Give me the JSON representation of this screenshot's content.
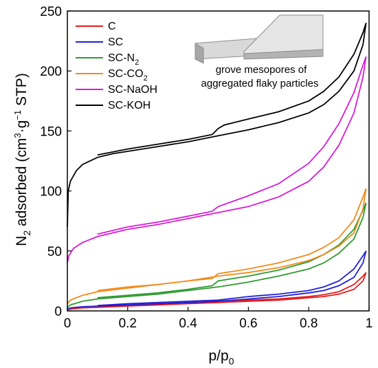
{
  "chart_data": {
    "type": "line",
    "title": "",
    "xlabel": {
      "base": "p/p",
      "sub": "0"
    },
    "ylabel": {
      "base": "N",
      "sub": "2",
      "rest": " adsorbed (cm",
      "sup1": "3",
      "mid": "·g",
      "sup2": "−1",
      "end": " STP)"
    },
    "xlim": [
      0,
      1
    ],
    "ylim": [
      0,
      250
    ],
    "x_ticks": [
      "0",
      "0.2",
      "0.4",
      "0.6",
      "0.8",
      "1"
    ],
    "x_tick_values": [
      0,
      0.2,
      0.4,
      0.6,
      0.8,
      1.0
    ],
    "y_ticks": [
      "0",
      "50",
      "100",
      "150",
      "200",
      "250"
    ],
    "y_tick_values": [
      0,
      50,
      100,
      150,
      200,
      250
    ],
    "grid": false,
    "legend_position": "top-left",
    "annotation": {
      "line1": "grove mesopores of",
      "line2": "aggregated flaky particles"
    },
    "series": [
      {
        "name": "C",
        "label_base": "C",
        "label_sub": "",
        "color": "#e31a1c",
        "adsorption": [
          [
            0,
            1
          ],
          [
            0.01,
            1.5
          ],
          [
            0.05,
            2.5
          ],
          [
            0.1,
            3
          ],
          [
            0.2,
            4
          ],
          [
            0.3,
            5
          ],
          [
            0.4,
            6
          ],
          [
            0.5,
            7
          ],
          [
            0.6,
            8
          ],
          [
            0.7,
            9
          ],
          [
            0.8,
            11
          ],
          [
            0.85,
            12
          ],
          [
            0.9,
            14
          ],
          [
            0.95,
            18
          ],
          [
            0.98,
            25
          ],
          [
            0.99,
            32
          ]
        ],
        "desorption": [
          [
            0.99,
            32
          ],
          [
            0.98,
            29
          ],
          [
            0.95,
            22
          ],
          [
            0.9,
            16
          ],
          [
            0.85,
            13.5
          ],
          [
            0.8,
            12
          ],
          [
            0.7,
            10
          ],
          [
            0.6,
            9
          ],
          [
            0.5,
            8
          ],
          [
            0.4,
            6.5
          ],
          [
            0.3,
            5.5
          ],
          [
            0.2,
            4.5
          ],
          [
            0.1,
            3.5
          ]
        ]
      },
      {
        "name": "SC",
        "label_base": "SC",
        "label_sub": "",
        "color": "#1f1fd8",
        "adsorption": [
          [
            0,
            1.5
          ],
          [
            0.01,
            2.5
          ],
          [
            0.05,
            3.5
          ],
          [
            0.1,
            4
          ],
          [
            0.2,
            5
          ],
          [
            0.3,
            6
          ],
          [
            0.4,
            7
          ],
          [
            0.5,
            8
          ],
          [
            0.6,
            10
          ],
          [
            0.7,
            12
          ],
          [
            0.8,
            15
          ],
          [
            0.85,
            17
          ],
          [
            0.9,
            21
          ],
          [
            0.95,
            28
          ],
          [
            0.98,
            40
          ],
          [
            0.99,
            50
          ]
        ],
        "desorption": [
          [
            0.99,
            50
          ],
          [
            0.98,
            46
          ],
          [
            0.95,
            35
          ],
          [
            0.9,
            25
          ],
          [
            0.85,
            20
          ],
          [
            0.8,
            17
          ],
          [
            0.7,
            14
          ],
          [
            0.6,
            12
          ],
          [
            0.5,
            9
          ],
          [
            0.4,
            8
          ],
          [
            0.3,
            7
          ],
          [
            0.2,
            6
          ],
          [
            0.1,
            4.5
          ]
        ]
      },
      {
        "name": "SC-N2",
        "label_base": "SC-N",
        "label_sub": "2",
        "color": "#2e9a2e",
        "adsorption": [
          [
            0,
            3
          ],
          [
            0.01,
            5
          ],
          [
            0.05,
            8
          ],
          [
            0.1,
            10
          ],
          [
            0.2,
            12
          ],
          [
            0.3,
            14
          ],
          [
            0.4,
            17
          ],
          [
            0.5,
            20
          ],
          [
            0.6,
            24
          ],
          [
            0.7,
            29
          ],
          [
            0.8,
            35
          ],
          [
            0.85,
            40
          ],
          [
            0.9,
            48
          ],
          [
            0.95,
            60
          ],
          [
            0.98,
            78
          ],
          [
            0.99,
            90
          ]
        ],
        "desorption": [
          [
            0.99,
            90
          ],
          [
            0.98,
            84
          ],
          [
            0.95,
            68
          ],
          [
            0.9,
            55
          ],
          [
            0.85,
            47
          ],
          [
            0.8,
            41
          ],
          [
            0.7,
            34
          ],
          [
            0.6,
            29
          ],
          [
            0.5,
            25
          ],
          [
            0.48,
            21
          ],
          [
            0.4,
            18
          ],
          [
            0.3,
            15
          ],
          [
            0.2,
            13
          ],
          [
            0.1,
            11
          ]
        ]
      },
      {
        "name": "SC-CO2",
        "label_base": "SC-CO",
        "label_sub": "2",
        "color": "#f28a1a",
        "adsorption": [
          [
            0,
            6
          ],
          [
            0.01,
            9
          ],
          [
            0.05,
            13
          ],
          [
            0.1,
            16
          ],
          [
            0.2,
            19
          ],
          [
            0.3,
            22
          ],
          [
            0.4,
            25
          ],
          [
            0.5,
            29
          ],
          [
            0.6,
            32
          ],
          [
            0.7,
            36
          ],
          [
            0.8,
            42
          ],
          [
            0.85,
            47
          ],
          [
            0.9,
            54
          ],
          [
            0.95,
            65
          ],
          [
            0.98,
            85
          ],
          [
            0.99,
            102
          ]
        ],
        "desorption": [
          [
            0.99,
            102
          ],
          [
            0.98,
            95
          ],
          [
            0.95,
            76
          ],
          [
            0.9,
            61
          ],
          [
            0.85,
            53
          ],
          [
            0.8,
            47
          ],
          [
            0.7,
            40
          ],
          [
            0.6,
            35
          ],
          [
            0.5,
            31
          ],
          [
            0.48,
            27
          ],
          [
            0.4,
            25
          ],
          [
            0.3,
            22
          ],
          [
            0.2,
            20
          ],
          [
            0.1,
            17
          ]
        ]
      },
      {
        "name": "SC-NaOH",
        "label_base": "SC-NaOH",
        "label_sub": "",
        "color": "#d61ad6",
        "adsorption": [
          [
            0,
            40
          ],
          [
            0.005,
            46
          ],
          [
            0.02,
            52
          ],
          [
            0.05,
            57
          ],
          [
            0.1,
            62
          ],
          [
            0.2,
            68
          ],
          [
            0.3,
            72
          ],
          [
            0.4,
            77
          ],
          [
            0.5,
            82
          ],
          [
            0.6,
            87
          ],
          [
            0.7,
            95
          ],
          [
            0.8,
            108
          ],
          [
            0.85,
            120
          ],
          [
            0.9,
            138
          ],
          [
            0.95,
            165
          ],
          [
            0.98,
            195
          ],
          [
            0.99,
            212
          ]
        ],
        "desorption": [
          [
            0.99,
            212
          ],
          [
            0.98,
            205
          ],
          [
            0.95,
            182
          ],
          [
            0.9,
            156
          ],
          [
            0.85,
            137
          ],
          [
            0.8,
            123
          ],
          [
            0.7,
            106
          ],
          [
            0.6,
            96
          ],
          [
            0.5,
            87
          ],
          [
            0.48,
            83
          ],
          [
            0.4,
            79
          ],
          [
            0.3,
            74
          ],
          [
            0.2,
            70
          ],
          [
            0.1,
            64
          ]
        ]
      },
      {
        "name": "SC-KOH",
        "label_base": "SC-KOH",
        "label_sub": "",
        "color": "#000000",
        "adsorption": [
          [
            0,
            70
          ],
          [
            0.003,
            100
          ],
          [
            0.01,
            108
          ],
          [
            0.03,
            117
          ],
          [
            0.05,
            122
          ],
          [
            0.1,
            128
          ],
          [
            0.15,
            131
          ],
          [
            0.2,
            133
          ],
          [
            0.3,
            137
          ],
          [
            0.4,
            141
          ],
          [
            0.5,
            146
          ],
          [
            0.6,
            151
          ],
          [
            0.7,
            157
          ],
          [
            0.8,
            165
          ],
          [
            0.85,
            172
          ],
          [
            0.9,
            183
          ],
          [
            0.95,
            200
          ],
          [
            0.98,
            222
          ],
          [
            0.99,
            240
          ]
        ],
        "desorption": [
          [
            0.99,
            240
          ],
          [
            0.98,
            232
          ],
          [
            0.95,
            214
          ],
          [
            0.9,
            195
          ],
          [
            0.85,
            183
          ],
          [
            0.8,
            175
          ],
          [
            0.7,
            166
          ],
          [
            0.6,
            160
          ],
          [
            0.52,
            155
          ],
          [
            0.5,
            152
          ],
          [
            0.48,
            147
          ],
          [
            0.4,
            143
          ],
          [
            0.3,
            139
          ],
          [
            0.2,
            135
          ],
          [
            0.1,
            130
          ]
        ]
      }
    ]
  }
}
